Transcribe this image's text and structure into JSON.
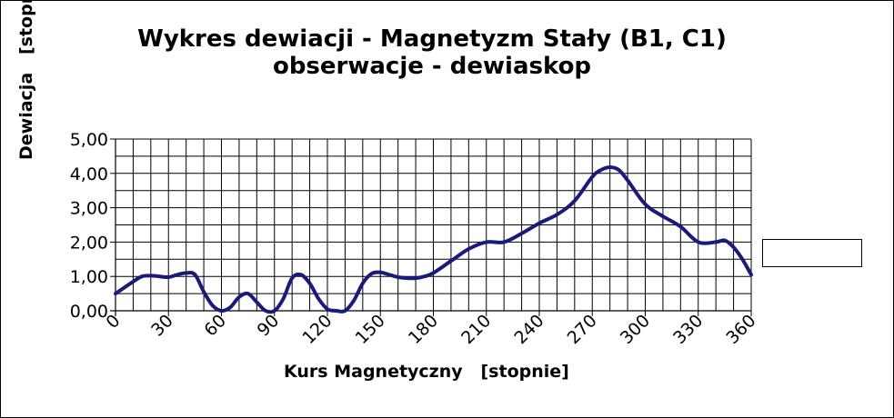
{
  "chart_data": {
    "type": "line",
    "title": [
      "Wykres dewiacji  - Magnetyzm Stały  (B1, C1)",
      "obserwacje - dewiaskop"
    ],
    "xlabel": "Kurs Magnetyczny   [stopnie]",
    "ylabel": "Dewiacja   [stopnie]",
    "xlim": [
      0,
      360
    ],
    "ylim": [
      0,
      5
    ],
    "xticks": [
      0,
      30,
      60,
      90,
      120,
      150,
      180,
      210,
      240,
      270,
      300,
      330,
      360
    ],
    "xtick_labels": [
      "0",
      "30",
      "60",
      "90",
      "120",
      "150",
      "180",
      "210",
      "240",
      "270",
      "300",
      "330",
      "360"
    ],
    "yticks": [
      0,
      1,
      2,
      3,
      4,
      5
    ],
    "ytick_labels": [
      "0,00",
      "1,00",
      "2,00",
      "3,00",
      "4,00",
      "5,00"
    ],
    "grid": true,
    "legend": "right (entry blank)",
    "color": "#1a1a7a",
    "series": [
      {
        "x": [
          0,
          10,
          15,
          20,
          25,
          30,
          35,
          40,
          45,
          50,
          55,
          60,
          65,
          70,
          75,
          80,
          85,
          90,
          95,
          100,
          105,
          110,
          115,
          120,
          125,
          130,
          135,
          140,
          145,
          150,
          155,
          160,
          165,
          170,
          175,
          180,
          190,
          200,
          210,
          220,
          230,
          240,
          250,
          260,
          270,
          275,
          280,
          285,
          290,
          300,
          310,
          320,
          330,
          340,
          345,
          350,
          355,
          360
        ],
        "y": [
          0.5,
          0.85,
          1.0,
          1.02,
          1.0,
          0.98,
          1.05,
          1.1,
          1.05,
          0.55,
          0.15,
          0.0,
          0.1,
          0.4,
          0.5,
          0.25,
          0.0,
          0.0,
          0.35,
          0.95,
          1.05,
          0.8,
          0.35,
          0.05,
          0.0,
          0.0,
          0.3,
          0.8,
          1.08,
          1.12,
          1.05,
          0.98,
          0.95,
          0.95,
          1.0,
          1.1,
          1.45,
          1.8,
          2.0,
          2.0,
          2.25,
          2.55,
          2.8,
          3.2,
          3.9,
          4.1,
          4.18,
          4.1,
          3.8,
          3.1,
          2.75,
          2.45,
          2.0,
          2.0,
          2.05,
          1.85,
          1.5,
          1.05
        ]
      }
    ]
  }
}
